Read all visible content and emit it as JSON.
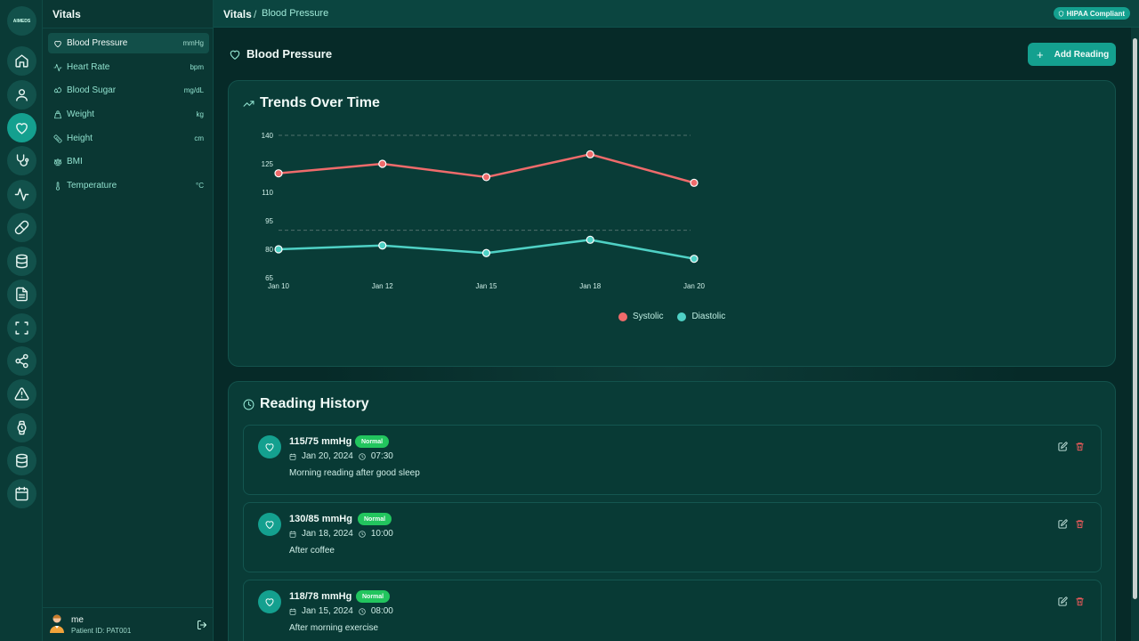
{
  "app": {
    "logo_text": "AIMEDS"
  },
  "rail": {
    "items": [
      {
        "icon": "home-icon"
      },
      {
        "icon": "user-icon"
      },
      {
        "icon": "heart-icon",
        "active": true
      },
      {
        "icon": "stethoscope-icon"
      },
      {
        "icon": "activity-icon"
      },
      {
        "icon": "pill-icon"
      },
      {
        "icon": "database-icon"
      },
      {
        "icon": "file-icon"
      },
      {
        "icon": "scan-icon"
      },
      {
        "icon": "share-icon"
      },
      {
        "icon": "alert-icon"
      },
      {
        "icon": "watch-icon"
      },
      {
        "icon": "database-icon"
      },
      {
        "icon": "calendar-icon"
      }
    ]
  },
  "sidebar": {
    "title": "Vitals",
    "items": [
      {
        "label": "Blood Pressure",
        "unit": "mmHg",
        "icon": "heart-icon"
      },
      {
        "label": "Heart Rate",
        "unit": "bpm",
        "icon": "activity-icon"
      },
      {
        "label": "Blood Sugar",
        "unit": "mg/dL",
        "icon": "droplets-icon"
      },
      {
        "label": "Weight",
        "unit": "kg",
        "icon": "weight-icon"
      },
      {
        "label": "Height",
        "unit": "cm",
        "icon": "ruler-icon"
      },
      {
        "label": "BMI",
        "unit": "",
        "icon": "scale-icon"
      },
      {
        "label": "Temperature",
        "unit": "°C",
        "icon": "thermometer-icon"
      }
    ],
    "user": {
      "name": "me",
      "patient_id": "Patient ID: PAT001"
    }
  },
  "header": {
    "breadcrumb_root": "Vitals",
    "breadcrumb_sep": "/",
    "breadcrumb_current": "Blood Pressure",
    "badge": "HIPAA Compliant"
  },
  "main": {
    "title": "Blood Pressure",
    "add_button": "Add Reading",
    "trends_title": "Trends Over Time",
    "history_title": "Reading History"
  },
  "chart_data": {
    "type": "line",
    "x": [
      "Jan 10",
      "Jan 12",
      "Jan 15",
      "Jan 18",
      "Jan 20"
    ],
    "series": [
      {
        "name": "Systolic",
        "values": [
          120,
          125,
          118,
          130,
          115
        ],
        "color": "#ef6b6b"
      },
      {
        "name": "Diastolic",
        "values": [
          80,
          82,
          78,
          85,
          75
        ],
        "color": "#4fd1c5"
      }
    ],
    "yticks": [
      140,
      125,
      110,
      95,
      80,
      65
    ],
    "ylim": [
      65,
      140
    ],
    "reference_lines": [
      140,
      90
    ],
    "legend_position": "bottom-center"
  },
  "readings": [
    {
      "value": "115/75 mmHg",
      "status": "Normal",
      "date": "Jan 20, 2024",
      "time": "07:30",
      "note": "Morning reading after good sleep"
    },
    {
      "value": "130/85 mmHg",
      "status": "Normal",
      "date": "Jan 18, 2024",
      "time": "10:00",
      "note": "After coffee"
    },
    {
      "value": "118/78 mmHg",
      "status": "Normal",
      "date": "Jan 15, 2024",
      "time": "08:00",
      "note": "After morning exercise"
    }
  ]
}
